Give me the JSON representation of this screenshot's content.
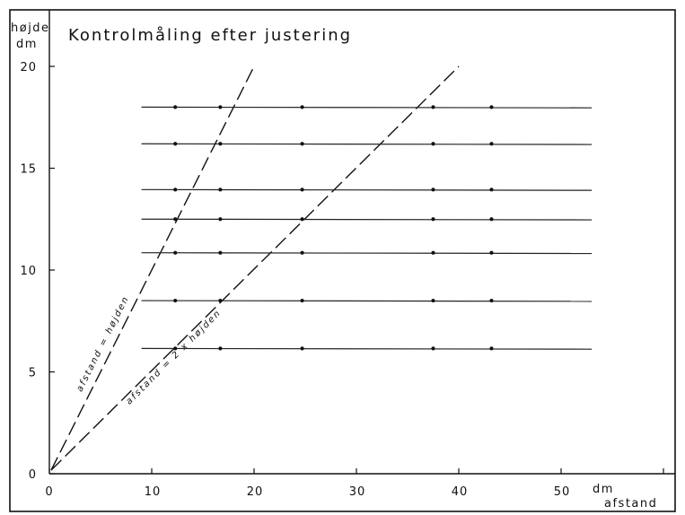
{
  "chart_data": {
    "type": "scatter",
    "title": "Kontrolmåling efter justering",
    "ylabel_line1": "højde",
    "ylabel_line2": "dm",
    "xunit": "dm",
    "xlabel": "afstand",
    "xlim": [
      0,
      60
    ],
    "ylim": [
      0,
      20
    ],
    "xticks": [
      0,
      10,
      20,
      30,
      40,
      50
    ],
    "yticks": [
      0,
      5,
      10,
      15,
      20
    ],
    "grid": false,
    "horizontal_lines": [
      {
        "y": 18.0,
        "x_start": 9,
        "x_end": 53,
        "points_x": [
          12.3,
          16.7,
          24.7,
          37.5,
          43.2
        ]
      },
      {
        "y": 16.2,
        "x_start": 9,
        "x_end": 53,
        "points_x": [
          12.3,
          16.7,
          24.7,
          37.5,
          43.2
        ]
      },
      {
        "y": 13.95,
        "x_start": 9,
        "x_end": 53,
        "points_x": [
          12.3,
          16.7,
          24.7,
          37.5,
          43.2
        ]
      },
      {
        "y": 12.5,
        "x_start": 9,
        "x_end": 53,
        "points_x": [
          12.3,
          16.7,
          24.7,
          37.5,
          43.2
        ]
      },
      {
        "y": 10.85,
        "x_start": 9,
        "x_end": 53,
        "points_x": [
          12.3,
          16.7,
          24.7,
          37.5,
          43.2
        ]
      },
      {
        "y": 8.5,
        "x_start": 9,
        "x_end": 53,
        "points_x": [
          12.3,
          16.7,
          24.7,
          37.5,
          43.2
        ]
      },
      {
        "y": 6.15,
        "x_start": 9,
        "x_end": 53,
        "points_x": [
          12.3,
          16.7,
          24.7,
          37.5,
          43.2
        ]
      }
    ],
    "reference_lines": [
      {
        "label": "afstand = højden",
        "x": [
          0,
          20
        ],
        "y": [
          0,
          20
        ]
      },
      {
        "label": "afstand = 2 x højden",
        "x": [
          0,
          40
        ],
        "y": [
          0,
          20
        ]
      }
    ]
  }
}
